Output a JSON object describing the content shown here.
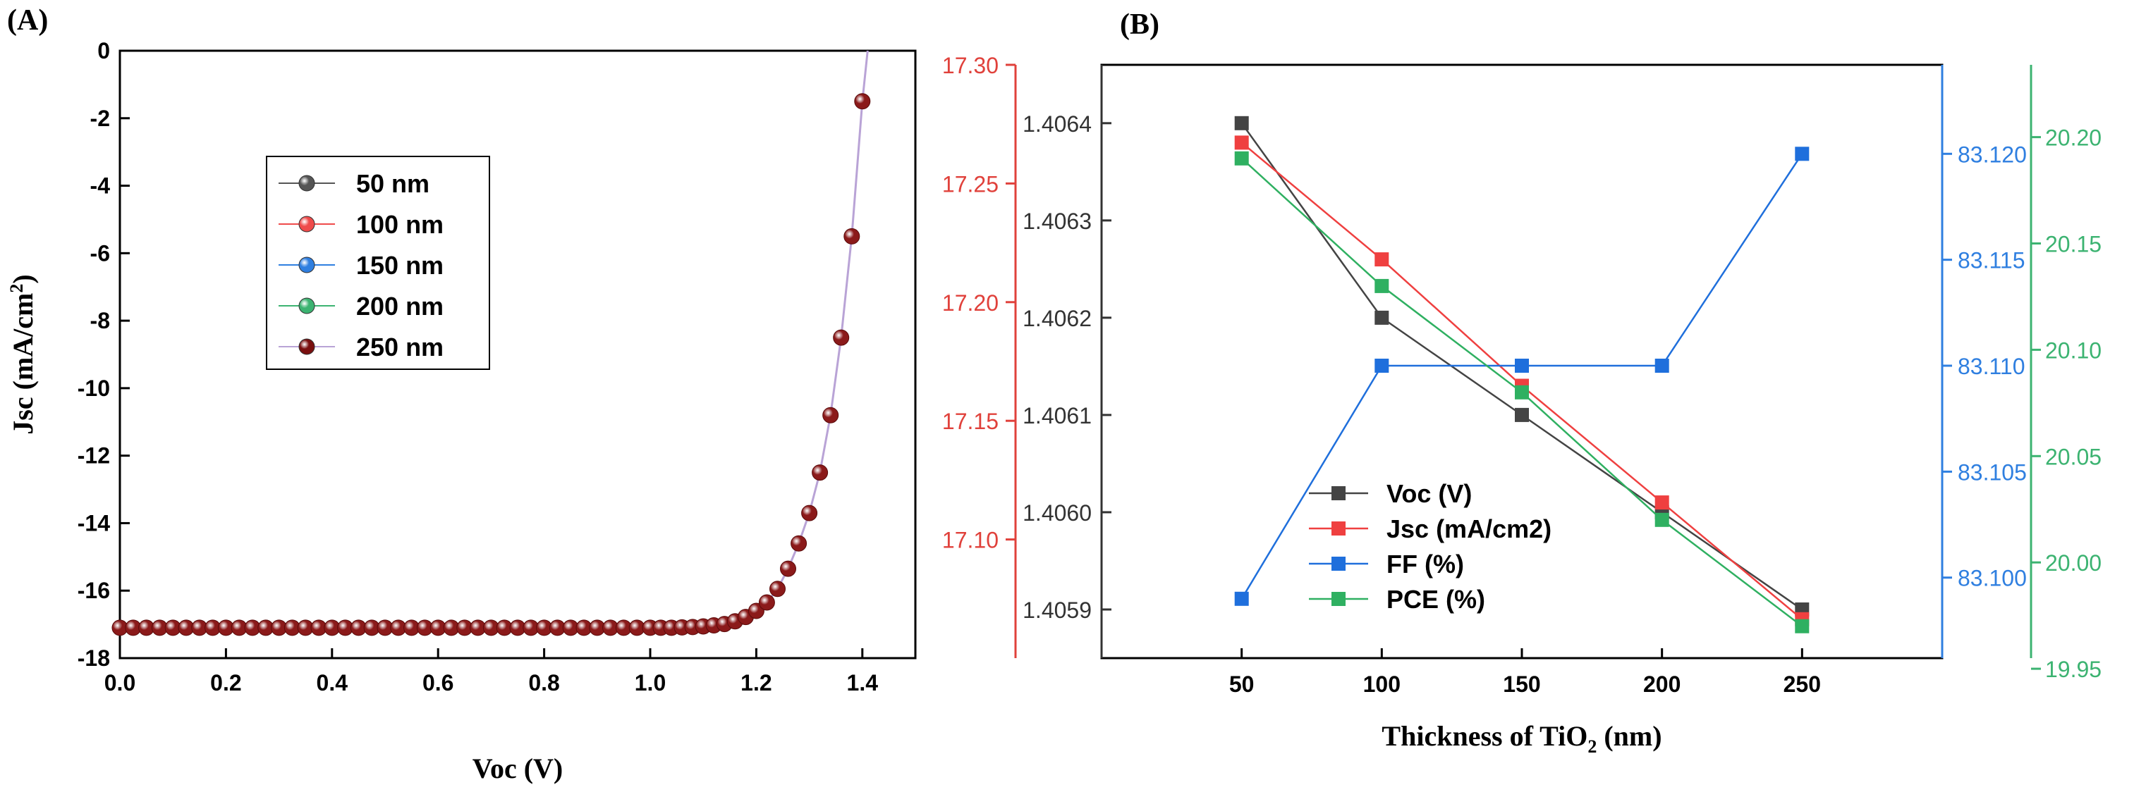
{
  "chart_data": [
    {
      "panel": "(A)",
      "type": "line",
      "xlabel": "Voc (V)",
      "ylabel": "Jsc (mA/cm2)",
      "ylabel_main": "Jsc (mA/cm",
      "ylabel_sup": "2",
      "ylabel_end": ")",
      "xlim": [
        0.0,
        1.5
      ],
      "ylim": [
        -18,
        0
      ],
      "xticks": [
        0.0,
        0.2,
        0.4,
        0.6,
        0.8,
        1.0,
        1.2,
        1.4
      ],
      "xtick_labels": [
        "0.0",
        "0.2",
        "0.4",
        "0.6",
        "0.8",
        "1.0",
        "1.2",
        "1.4"
      ],
      "yticks": [
        0,
        -2,
        -4,
        -6,
        -8,
        -10,
        -12,
        -14,
        -16,
        -18
      ],
      "ytick_labels": [
        "0",
        "-2",
        "-4",
        "-6",
        "-8",
        "-10",
        "-12",
        "-14",
        "-16",
        "-18"
      ],
      "right_axis": {
        "color": "#e0413b",
        "ylim": [
          17.05,
          17.3
        ],
        "ticks": [
          17.1,
          17.15,
          17.2,
          17.25,
          17.3
        ],
        "tick_labels": [
          "17.10",
          "17.15",
          "17.20",
          "17.25",
          "17.30"
        ]
      },
      "legend": [
        {
          "name": "50 nm",
          "color": "#555555",
          "line": "#555555"
        },
        {
          "name": "100 nm",
          "color": "#ef4b4b",
          "line": "#ef4b4b"
        },
        {
          "name": "150 nm",
          "color": "#2f7fe0",
          "line": "#2f7fe0"
        },
        {
          "name": "200 nm",
          "color": "#3cb371",
          "line": "#3cb371"
        },
        {
          "name": "250 nm",
          "color": "#7a0f0f",
          "line": "#b9a3d6"
        }
      ],
      "marker_color": "#8b1a1a",
      "curve_line_color": "#b9a3d6",
      "series": {
        "name": "250 nm",
        "x": [
          0.0,
          0.025,
          0.05,
          0.075,
          0.1,
          0.125,
          0.15,
          0.175,
          0.2,
          0.225,
          0.25,
          0.275,
          0.3,
          0.325,
          0.35,
          0.375,
          0.4,
          0.425,
          0.45,
          0.475,
          0.5,
          0.525,
          0.55,
          0.575,
          0.6,
          0.625,
          0.65,
          0.675,
          0.7,
          0.725,
          0.75,
          0.775,
          0.8,
          0.825,
          0.85,
          0.875,
          0.9,
          0.925,
          0.95,
          0.975,
          1.0,
          1.02,
          1.04,
          1.06,
          1.08,
          1.1,
          1.12,
          1.14,
          1.16,
          1.18,
          1.2,
          1.22,
          1.24,
          1.26,
          1.28,
          1.3,
          1.32,
          1.34,
          1.36,
          1.38,
          1.4
        ],
        "y": [
          -17.1,
          -17.1,
          -17.1,
          -17.1,
          -17.1,
          -17.1,
          -17.1,
          -17.1,
          -17.1,
          -17.1,
          -17.1,
          -17.1,
          -17.1,
          -17.1,
          -17.1,
          -17.1,
          -17.1,
          -17.1,
          -17.1,
          -17.1,
          -17.1,
          -17.1,
          -17.1,
          -17.1,
          -17.1,
          -17.1,
          -17.1,
          -17.1,
          -17.1,
          -17.1,
          -17.1,
          -17.1,
          -17.1,
          -17.1,
          -17.1,
          -17.1,
          -17.1,
          -17.1,
          -17.1,
          -17.1,
          -17.1,
          -17.1,
          -17.1,
          -17.09,
          -17.08,
          -17.06,
          -17.03,
          -16.99,
          -16.91,
          -16.78,
          -16.6,
          -16.35,
          -15.95,
          -15.35,
          -14.6,
          -13.7,
          -12.5,
          -10.8,
          -8.5,
          -5.5,
          -1.5
        ],
        "curve_extension": {
          "x": [
            1.4,
            1.41
          ],
          "y": [
            -1.5,
            0
          ]
        }
      }
    },
    {
      "panel": "(B)",
      "type": "line",
      "xlabel": "Thickness of TiO2 (nm)",
      "xlabel_main": "Thickness of TiO",
      "xlabel_sub": "2",
      "xlabel_end": " (nm)",
      "categories": [
        50,
        100,
        150,
        200,
        250
      ],
      "xlim": [
        0,
        300
      ],
      "xticks": [
        50,
        100,
        150,
        200,
        250
      ],
      "xtick_labels": [
        "50",
        "100",
        "150",
        "200",
        "250"
      ],
      "axes": {
        "voc": {
          "ylim": [
            1.40585,
            1.40646
          ],
          "ticks": [
            1.4059,
            1.406,
            1.4061,
            1.4062,
            1.4063,
            1.4064
          ],
          "tick_labels": [
            "1.4059",
            "1.4060",
            "1.4061",
            "1.4062",
            "1.4063",
            "1.4064"
          ],
          "color": "#333333"
        },
        "ff": {
          "ylim": [
            83.0962,
            83.1242
          ],
          "ticks": [
            83.1,
            83.105,
            83.11,
            83.115,
            83.12
          ],
          "tick_labels": [
            "83.100",
            "83.105",
            "83.110",
            "83.115",
            "83.120"
          ],
          "color": "#2f7fe0"
        },
        "pce": {
          "ylim": [
            19.955,
            20.234
          ],
          "ticks": [
            19.95,
            20.0,
            20.05,
            20.1,
            20.15,
            20.2
          ],
          "tick_labels": [
            "19.95",
            "20.00",
            "20.05",
            "20.10",
            "20.15",
            "20.20"
          ],
          "color": "#3cb371"
        }
      },
      "series": [
        {
          "name": "Voc (V)",
          "axis": "voc",
          "color": "#444444",
          "values": [
            1.4064,
            1.4062,
            1.4061,
            1.406,
            1.4059
          ]
        },
        {
          "name": "Jsc (mA/cm2)",
          "axis": "voc",
          "color": "#ef4040",
          "values": [
            1.40638,
            1.40626,
            1.40613,
            1.40601,
            1.40589
          ]
        },
        {
          "name": "FF (%)",
          "axis": "ff",
          "color": "#1f6fdc",
          "values": [
            83.099,
            83.11,
            83.11,
            83.11,
            83.12
          ]
        },
        {
          "name": "PCE (%)",
          "axis": "pce",
          "color": "#2fb061",
          "values": [
            20.19,
            20.13,
            20.08,
            20.02,
            19.97
          ]
        }
      ]
    }
  ]
}
